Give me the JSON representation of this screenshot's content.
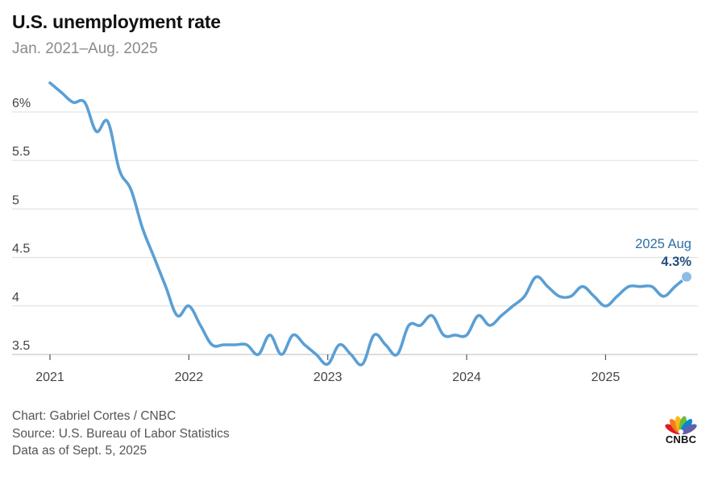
{
  "header": {
    "title": "U.S. unemployment rate",
    "subtitle": "Jan. 2021–Aug. 2025"
  },
  "footer": {
    "credit": "Chart: Gabriel Cortes / CNBC",
    "source": "Source: U.S. Bureau of Labor Statistics",
    "date_note": "Data as of Sept. 5, 2025"
  },
  "logo": {
    "text": "CNBC"
  },
  "colors": {
    "line": "#5a9fd4",
    "annotation": "#2f6ea5",
    "annotation_value": "#1f4f7c",
    "grid": "#dddddd"
  },
  "chart_data": {
    "type": "line",
    "title": "U.S. unemployment rate",
    "subtitle": "Jan. 2021–Aug. 2025",
    "xlabel": "",
    "ylabel": "",
    "y_ticks": [
      "6%",
      "5.5",
      "5",
      "4.5",
      "4",
      "3.5"
    ],
    "y_tick_values": [
      6,
      5.5,
      5,
      4.5,
      4,
      3.5
    ],
    "x_ticks": [
      "2021",
      "2022",
      "2023",
      "2024",
      "2025"
    ],
    "ylim": [
      3.4,
      6.4
    ],
    "xlim": [
      "2021-01",
      "2025-08"
    ],
    "grid": true,
    "series": [
      {
        "dates": [
          "2021-01",
          "2021-02",
          "2021-03",
          "2021-04",
          "2021-05",
          "2021-06",
          "2021-07",
          "2021-08",
          "2021-09",
          "2021-10",
          "2021-11",
          "2021-12",
          "2022-01",
          "2022-02",
          "2022-03",
          "2022-04",
          "2022-05",
          "2022-06",
          "2022-07",
          "2022-08",
          "2022-09",
          "2022-10",
          "2022-11",
          "2022-12",
          "2023-01",
          "2023-02",
          "2023-03",
          "2023-04",
          "2023-05",
          "2023-06",
          "2023-07",
          "2023-08",
          "2023-09",
          "2023-10",
          "2023-11",
          "2023-12",
          "2024-01",
          "2024-02",
          "2024-03",
          "2024-04",
          "2024-05",
          "2024-06",
          "2024-07",
          "2024-08",
          "2024-09",
          "2024-10",
          "2024-11",
          "2024-12",
          "2025-01",
          "2025-02",
          "2025-03",
          "2025-04",
          "2025-05",
          "2025-06",
          "2025-07",
          "2025-08"
        ],
        "values": [
          6.3,
          6.2,
          6.1,
          6.1,
          5.8,
          5.9,
          5.4,
          5.2,
          4.8,
          4.5,
          4.2,
          3.9,
          4.0,
          3.8,
          3.6,
          3.6,
          3.6,
          3.6,
          3.5,
          3.7,
          3.5,
          3.7,
          3.6,
          3.5,
          3.4,
          3.6,
          3.5,
          3.4,
          3.7,
          3.6,
          3.5,
          3.8,
          3.8,
          3.9,
          3.7,
          3.7,
          3.7,
          3.9,
          3.8,
          3.9,
          4.0,
          4.1,
          4.3,
          4.2,
          4.1,
          4.1,
          4.2,
          4.1,
          4.0,
          4.1,
          4.2,
          4.2,
          4.2,
          4.1,
          4.2,
          4.3
        ]
      }
    ],
    "annotation": {
      "date": "2025-08",
      "label": "2025 Aug",
      "value_label": "4.3%"
    }
  }
}
